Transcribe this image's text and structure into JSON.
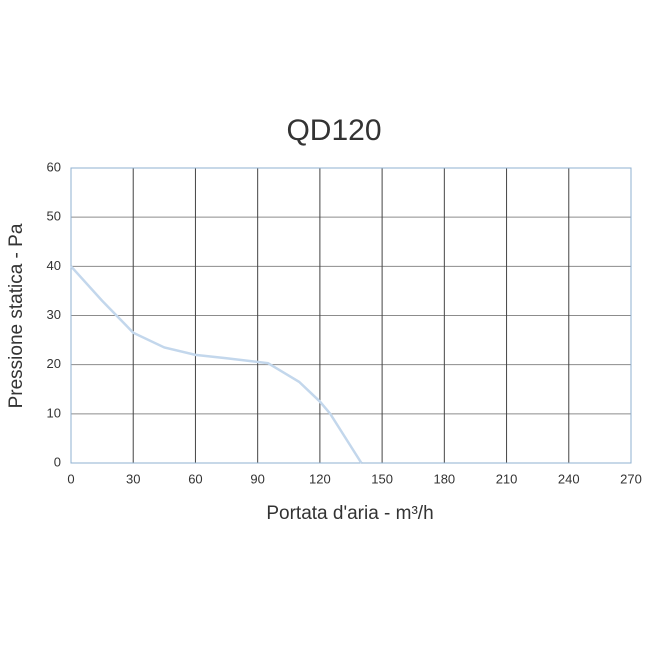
{
  "chart_data": {
    "type": "line",
    "title": "QD120",
    "x_label": "Portata d'aria - m³/h",
    "y_label": "Pressione statica - Pa",
    "x": [
      0,
      15,
      30,
      45,
      60,
      75,
      95,
      110,
      120,
      125,
      140
    ],
    "values": [
      40,
      33,
      26.5,
      23.5,
      22,
      21.3,
      20.3,
      16.5,
      12.5,
      10,
      0
    ],
    "color": "#c3d7ec",
    "xlim": [
      0,
      270
    ],
    "xticks": [
      0,
      30,
      60,
      90,
      120,
      150,
      180,
      210,
      240,
      270
    ],
    "ylim": [
      0,
      60
    ],
    "yticks": [
      0,
      10,
      20,
      30,
      40,
      50,
      60
    ],
    "grid": true
  }
}
